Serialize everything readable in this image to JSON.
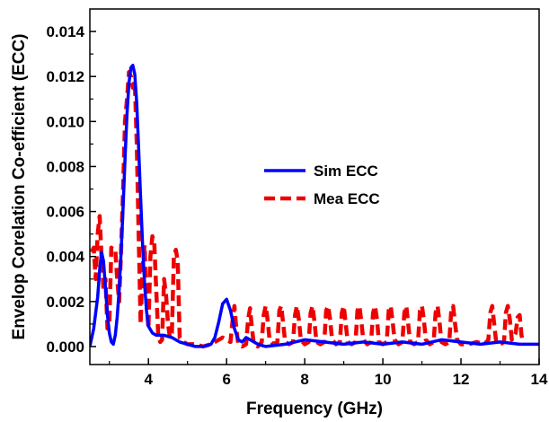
{
  "chart_data": {
    "type": "line",
    "title": "",
    "xlabel": "Frequency (GHz)",
    "ylabel": "Envelop Corelation Co-efficient (ECC)",
    "xlim": [
      2.5,
      14
    ],
    "ylim": [
      -0.0008,
      0.015
    ],
    "xticks": [
      4,
      6,
      8,
      10,
      12,
      14
    ],
    "xtick_labels": [
      "4",
      "6",
      "8",
      "10",
      "12",
      "14"
    ],
    "yticks": [
      0.0,
      0.002,
      0.004,
      0.006,
      0.008,
      0.01,
      0.012,
      0.014
    ],
    "ytick_labels": [
      "0.000",
      "0.002",
      "0.004",
      "0.006",
      "0.008",
      "0.010",
      "0.012",
      "0.014"
    ],
    "grid": false,
    "legend_position": "center-right",
    "series": [
      {
        "name": "Sim ECC",
        "color": "#0000ff",
        "style": "solid",
        "x": [
          2.5,
          2.6,
          2.7,
          2.75,
          2.8,
          2.85,
          2.9,
          2.95,
          3.0,
          3.05,
          3.1,
          3.15,
          3.2,
          3.25,
          3.3,
          3.35,
          3.4,
          3.45,
          3.5,
          3.55,
          3.6,
          3.65,
          3.7,
          3.75,
          3.8,
          3.85,
          3.9,
          3.95,
          4.0,
          4.1,
          4.2,
          4.3,
          4.4,
          4.6,
          4.8,
          5.0,
          5.2,
          5.4,
          5.6,
          5.7,
          5.8,
          5.9,
          6.0,
          6.1,
          6.2,
          6.3,
          6.4,
          6.5,
          6.6,
          6.8,
          7.0,
          7.5,
          8.0,
          8.5,
          9.0,
          9.5,
          10.0,
          10.5,
          11.0,
          11.5,
          12.0,
          12.5,
          13.0,
          13.5,
          14.0
        ],
        "y": [
          0.0,
          0.0008,
          0.0022,
          0.0034,
          0.0042,
          0.0038,
          0.0026,
          0.0014,
          0.0006,
          0.0002,
          0.0001,
          0.0005,
          0.0013,
          0.0025,
          0.0042,
          0.0062,
          0.0083,
          0.0103,
          0.0117,
          0.0124,
          0.0125,
          0.0121,
          0.0108,
          0.0088,
          0.0066,
          0.0045,
          0.0028,
          0.0016,
          0.0009,
          0.0006,
          0.0005,
          0.0005,
          0.0005,
          0.0004,
          0.0002,
          0.0001,
          0.0,
          0.0,
          0.0001,
          0.0004,
          0.0011,
          0.0019,
          0.0021,
          0.0016,
          0.0008,
          0.0003,
          0.0002,
          0.0004,
          0.0003,
          0.0001,
          0.0,
          0.0001,
          0.0003,
          0.0002,
          0.0001,
          0.0002,
          0.0001,
          0.0002,
          0.0001,
          0.0003,
          0.0002,
          0.0001,
          0.0002,
          0.0001,
          0.0001
        ]
      },
      {
        "name": "Mea ECC",
        "color": "#ee0000",
        "style": "dashed",
        "x": [
          2.55,
          2.6,
          2.65,
          2.7,
          2.75,
          2.8,
          2.85,
          2.9,
          2.95,
          3.0,
          3.05,
          3.1,
          3.15,
          3.2,
          3.25,
          3.3,
          3.35,
          3.4,
          3.45,
          3.5,
          3.55,
          3.6,
          3.65,
          3.7,
          3.75,
          3.8,
          3.85,
          3.9,
          3.95,
          4.0,
          4.05,
          4.1,
          4.15,
          4.2,
          4.25,
          4.3,
          4.35,
          4.4,
          4.45,
          4.5,
          4.55,
          4.6,
          4.65,
          4.7,
          4.75,
          4.8,
          4.9,
          5.0,
          5.2,
          5.4,
          5.6,
          5.8,
          5.9,
          6.0,
          6.1,
          6.15,
          6.2,
          6.25,
          6.3,
          6.4,
          6.5,
          6.55,
          6.6,
          6.65,
          6.7,
          6.8,
          6.9,
          6.95,
          7.0,
          7.05,
          7.1,
          7.2,
          7.3,
          7.35,
          7.4,
          7.45,
          7.5,
          7.6,
          7.7,
          7.75,
          7.8,
          7.85,
          7.9,
          8.0,
          8.1,
          8.15,
          8.2,
          8.25,
          8.3,
          8.4,
          8.5,
          8.55,
          8.6,
          8.65,
          8.7,
          8.8,
          8.9,
          8.95,
          9.0,
          9.05,
          9.1,
          9.2,
          9.3,
          9.35,
          9.4,
          9.45,
          9.5,
          9.6,
          9.7,
          9.75,
          9.8,
          9.85,
          9.9,
          10.0,
          10.1,
          10.15,
          10.2,
          10.25,
          10.3,
          10.4,
          10.5,
          10.55,
          10.6,
          10.65,
          10.7,
          10.8,
          10.9,
          10.95,
          11.0,
          11.05,
          11.1,
          11.2,
          11.3,
          11.35,
          11.4,
          11.45,
          11.5,
          11.6,
          11.7,
          11.75,
          11.8,
          11.85,
          11.9,
          12.0,
          12.2,
          12.4,
          12.6,
          12.7,
          12.75,
          12.8,
          12.85,
          12.9,
          13.0,
          13.1,
          13.15,
          13.2,
          13.25,
          13.3,
          13.4,
          13.45,
          13.5,
          13.55,
          13.6
        ],
        "y": [
          0.0042,
          0.0044,
          0.003,
          0.005,
          0.0058,
          0.004,
          0.0025,
          0.003,
          0.0008,
          0.001,
          0.0044,
          0.0043,
          0.0043,
          0.003,
          0.002,
          0.0043,
          0.007,
          0.01,
          0.011,
          0.0122,
          0.012,
          0.0115,
          0.0118,
          0.009,
          0.005,
          0.001,
          0.0035,
          0.0045,
          0.002,
          0.0008,
          0.004,
          0.0049,
          0.0046,
          0.0025,
          0.0005,
          0.0002,
          0.0003,
          0.003,
          0.0023,
          0.001,
          0.0004,
          0.0006,
          0.004,
          0.0043,
          0.0038,
          0.0004,
          0.0002,
          0.0001,
          0.0001,
          0.0,
          0.0001,
          0.0003,
          0.0004,
          0.0003,
          0.0002,
          0.0011,
          0.0018,
          0.0008,
          0.0001,
          0.0,
          0.0001,
          0.0012,
          0.0017,
          0.0008,
          0.0001,
          0.0,
          0.0002,
          0.0014,
          0.0018,
          0.0012,
          0.0003,
          0.0001,
          0.0002,
          0.0016,
          0.0018,
          0.001,
          0.0002,
          0.0001,
          0.0002,
          0.0014,
          0.0018,
          0.0012,
          0.0003,
          0.0001,
          0.0002,
          0.0015,
          0.0018,
          0.0011,
          0.0002,
          0.0001,
          0.0002,
          0.0016,
          0.0018,
          0.0012,
          0.0003,
          0.0001,
          0.0002,
          0.0015,
          0.0018,
          0.001,
          0.0002,
          0.0001,
          0.0002,
          0.0016,
          0.0018,
          0.0011,
          0.0003,
          0.0001,
          0.0002,
          0.0015,
          0.0018,
          0.0012,
          0.0002,
          0.0001,
          0.0002,
          0.0016,
          0.0018,
          0.0011,
          0.0003,
          0.0001,
          0.0002,
          0.0015,
          0.0018,
          0.001,
          0.0002,
          0.0001,
          0.0002,
          0.0016,
          0.0018,
          0.0012,
          0.0003,
          0.0001,
          0.0002,
          0.0015,
          0.0018,
          0.0011,
          0.0002,
          0.0001,
          0.0002,
          0.0016,
          0.0018,
          0.001,
          0.0003,
          0.0001,
          0.0001,
          0.0002,
          0.0001,
          0.0003,
          0.0015,
          0.0018,
          0.001,
          0.0002,
          0.0001,
          0.0002,
          0.0015,
          0.0018,
          0.0012,
          0.0003,
          0.0006,
          0.0013,
          0.0014,
          0.0005,
          0.0001
        ]
      }
    ]
  }
}
